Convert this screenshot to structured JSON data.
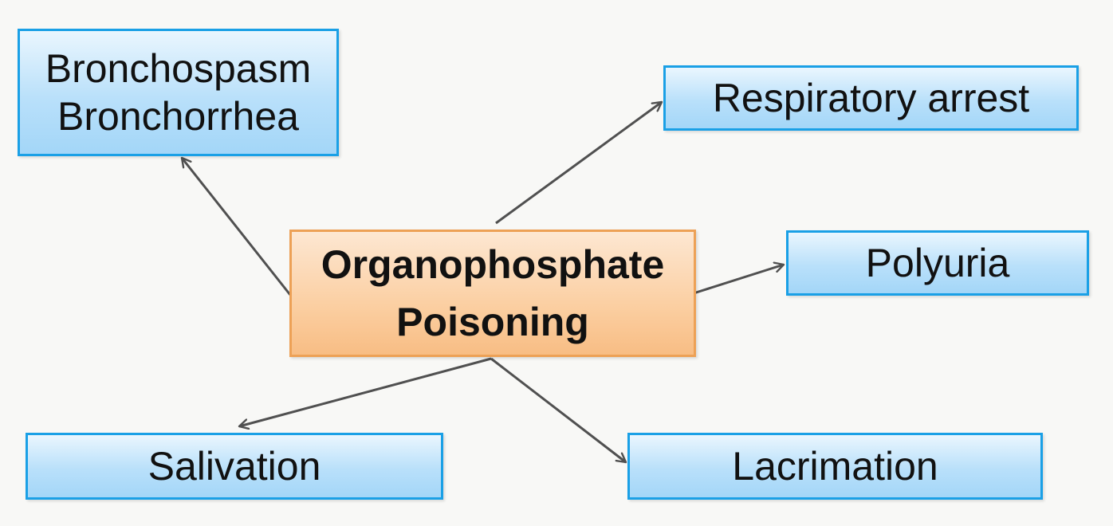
{
  "center": {
    "lines": [
      "Organophosphate",
      "Poisoning"
    ]
  },
  "effects": {
    "bronchial": {
      "lines": [
        "Bronchospasm",
        "Bronchorrhea"
      ]
    },
    "respiratory": {
      "label": "Respiratory arrest"
    },
    "polyuria": {
      "label": "Polyuria"
    },
    "salivation": {
      "label": "Salivation"
    },
    "lacrimation": {
      "label": "Lacrimation"
    }
  },
  "colors": {
    "effect_border": "#1aa0e6",
    "effect_fill": "#b9e0fa",
    "center_border": "#eda156",
    "center_fill": "#fbcfa2",
    "arrow": "#505050"
  }
}
